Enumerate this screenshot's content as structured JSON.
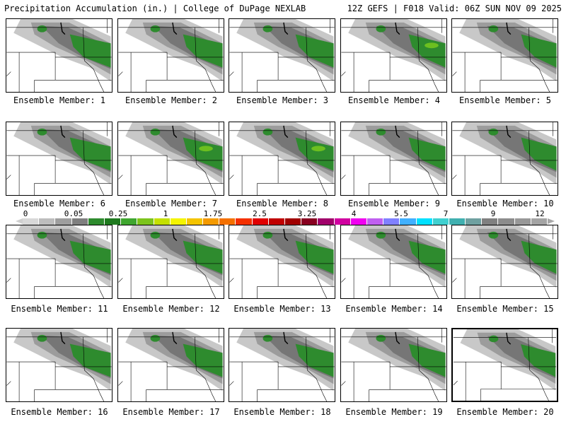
{
  "header": {
    "left_title": "Precipitation Accumulation (in.) | College of DuPage NEXLAB",
    "right_title": "12Z GEFS | F018 Valid: 06Z SUN NOV 09 2025"
  },
  "panels": [
    {
      "caption": "Ensemble Member: 1",
      "selected": false
    },
    {
      "caption": "Ensemble Member: 2",
      "selected": false
    },
    {
      "caption": "Ensemble Member: 3",
      "selected": false
    },
    {
      "caption": "Ensemble Member: 4",
      "selected": false
    },
    {
      "caption": "Ensemble Member: 5",
      "selected": false
    },
    {
      "caption": "Ensemble Member: 6",
      "selected": false
    },
    {
      "caption": "Ensemble Member: 7",
      "selected": false
    },
    {
      "caption": "Ensemble Member: 8",
      "selected": false
    },
    {
      "caption": "Ensemble Member: 9",
      "selected": false
    },
    {
      "caption": "Ensemble Member: 10",
      "selected": false
    },
    {
      "caption": "Ensemble Member: 11",
      "selected": false
    },
    {
      "caption": "Ensemble Member: 12",
      "selected": false
    },
    {
      "caption": "Ensemble Member: 13",
      "selected": false
    },
    {
      "caption": "Ensemble Member: 14",
      "selected": false
    },
    {
      "caption": "Ensemble Member: 15",
      "selected": false
    },
    {
      "caption": "Ensemble Member: 16",
      "selected": false
    },
    {
      "caption": "Ensemble Member: 17",
      "selected": false
    },
    {
      "caption": "Ensemble Member: 18",
      "selected": false
    },
    {
      "caption": "Ensemble Member: 19",
      "selected": false
    },
    {
      "caption": "Ensemble Member: 20",
      "selected": true
    }
  ],
  "colorbar": {
    "tick_labels": [
      "0",
      "0.05",
      "0.25",
      "1",
      "1.75",
      "2.5",
      "3.25",
      "4",
      "5.5",
      "7",
      "9",
      "12"
    ],
    "colors": [
      "#d8d8d8",
      "#bdbdbd",
      "#9e9e9e",
      "#7f7f7f",
      "#2e8b2e",
      "#1f7a1f",
      "#3fa62f",
      "#7cc41c",
      "#c4e000",
      "#f4f400",
      "#f4c400",
      "#f49a00",
      "#f47000",
      "#f43000",
      "#e00000",
      "#c00000",
      "#a00000",
      "#880020",
      "#a0006a",
      "#d000a0",
      "#f000f0",
      "#c060f0",
      "#8080ff",
      "#40b0ff",
      "#00e0ff",
      "#40d0d0",
      "#40b0b0",
      "#6fa0a0",
      "#808080",
      "#8c8c8c",
      "#989898",
      "#a4a4a4"
    ],
    "precip_colors": {
      "light": "#c8c8c8",
      "mid": "#9c9c9c",
      "dark": "#767676",
      "green": "#2e8b2e",
      "bright": "#6cbf20"
    }
  }
}
